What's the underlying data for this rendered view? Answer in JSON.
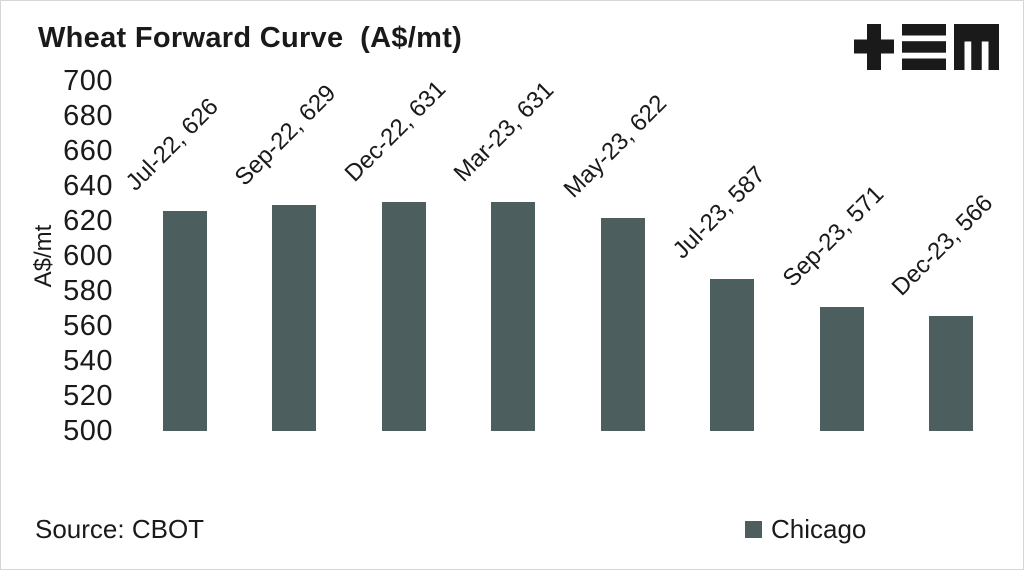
{
  "page": {
    "background_color": "#ffffff",
    "border_color": "#d6d6d6",
    "text_color": "#1a1a1a"
  },
  "header": {
    "logo": "tem-logo",
    "logo_color": "#1a1a1a"
  },
  "chart_data": {
    "type": "bar",
    "title": "Wheat Forward Curve  (A$/mt)",
    "xlabel": "",
    "ylabel": "A$/mt",
    "ylim": [
      500,
      700
    ],
    "ytick_step": 20,
    "yticks": [
      700,
      680,
      660,
      640,
      620,
      600,
      580,
      560,
      540,
      520,
      500
    ],
    "grid": false,
    "categories": [
      "Jul-22",
      "Sep-22",
      "Dec-22",
      "Mar-23",
      "May-23",
      "Jul-23",
      "Sep-23",
      "Dec-23"
    ],
    "series": [
      {
        "name": "Chicago",
        "color": "#4d5e5f",
        "values": [
          626,
          629,
          631,
          631,
          622,
          587,
          571,
          566
        ]
      }
    ],
    "data_labels": [
      "Jul-22, 626",
      "Sep-22, 629",
      "Dec-22, 631",
      "Mar-23, 631",
      "May-23, 622",
      "Jul-23, 587",
      "Sep-23, 571",
      "Dec-23, 566"
    ],
    "data_label_rotation_deg": -45,
    "legend_position": "bottom-right"
  },
  "footer": {
    "source": "Source: CBOT",
    "legend": [
      {
        "label": "Chicago",
        "color": "#4d5e5f"
      }
    ]
  }
}
